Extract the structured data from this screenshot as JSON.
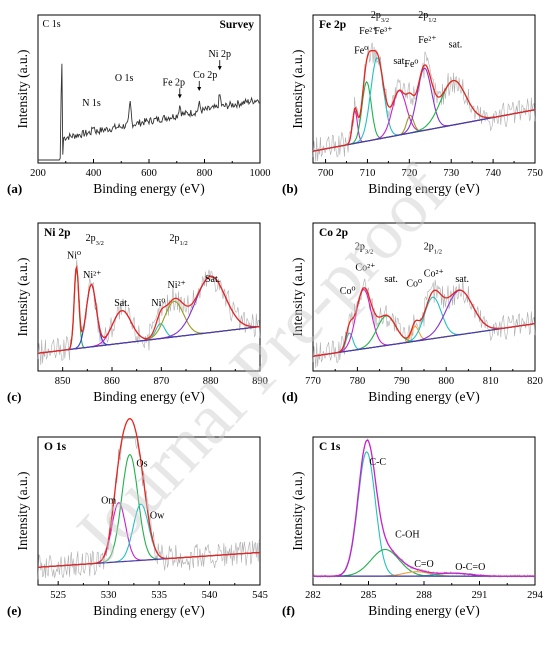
{
  "watermark": "Journal Pre-proof",
  "colors": {
    "envelope": "#e8261f",
    "background": "#4b3aa8",
    "raw": "#999999",
    "green": "#22b14c",
    "magenta": "#cc1fcc",
    "blue": "#2a3bd6",
    "cyan": "#22c1c1",
    "olive": "#9a9a1e",
    "orange": "#f0a030",
    "purple": "#8a30d0",
    "teal": "#1ab0a0",
    "survey_line": "#333333"
  },
  "chart_data": [
    {
      "id": "survey",
      "type": "line",
      "panel_label": "(a)",
      "title": "Survey",
      "xlabel": "Binding energy (eV)",
      "ylabel": "Intensity (a.u.)",
      "xlim": [
        200,
        1000
      ],
      "xticks": [
        "200",
        "400",
        "600",
        "800",
        "1000"
      ],
      "peaks": [
        {
          "label": "C 1s",
          "x": 285,
          "height": 1.0
        },
        {
          "label": "N 1s",
          "x": 400,
          "height": 0.05
        },
        {
          "label": "O 1s",
          "x": 532,
          "height": 0.18
        },
        {
          "label": "Fe 2p",
          "x": 711,
          "height": 0.08
        },
        {
          "label": "Co 2p",
          "x": 781,
          "height": 0.06
        },
        {
          "label": "Ni 2p",
          "x": 855,
          "height": 0.1
        }
      ]
    },
    {
      "id": "fe2p",
      "type": "line",
      "panel_label": "(b)",
      "title": "Fe 2p",
      "xlabel": "Binding energy (eV)",
      "ylabel": "Intensity (a.u.)",
      "xlim": [
        697,
        750
      ],
      "xticks": [
        "700",
        "710",
        "720",
        "730",
        "740",
        "750"
      ],
      "components": [
        {
          "label": "Fe⁰",
          "center": 707.0,
          "fwhm": 1.4,
          "height": 0.22,
          "color": "magenta"
        },
        {
          "label": "Fe²⁺",
          "center": 709.8,
          "fwhm": 2.6,
          "height": 0.4,
          "color": "green"
        },
        {
          "label": "Fe³⁺",
          "center": 712.3,
          "fwhm": 3.6,
          "height": 0.55,
          "color": "cyan"
        },
        {
          "label": "sat.",
          "center": 717.6,
          "fwhm": 4.0,
          "height": 0.3,
          "color": "magenta"
        },
        {
          "label": "Fe⁰",
          "center": 720.2,
          "fwhm": 2.0,
          "height": 0.12,
          "color": "olive"
        },
        {
          "label": "Fe²⁺",
          "center": 723.6,
          "fwhm": 4.0,
          "height": 0.42,
          "color": "purple"
        },
        {
          "label": "sat.",
          "center": 730.5,
          "fwhm": 7.0,
          "height": 0.3,
          "color": "green"
        }
      ],
      "annotations": [
        "2p3/2",
        "2p1/2"
      ],
      "background_range": [
        0.08,
        0.36
      ]
    },
    {
      "id": "ni2p",
      "type": "line",
      "panel_label": "(c)",
      "title": "Ni 2p",
      "xlabel": "Binding energy (eV)",
      "ylabel": "Intensity (a.u.)",
      "xlim": [
        845,
        890
      ],
      "xticks": [
        "850",
        "860",
        "870",
        "880",
        "890"
      ],
      "components": [
        {
          "label": "Ni⁰",
          "center": 852.8,
          "fwhm": 1.1,
          "height": 0.55,
          "color": "green"
        },
        {
          "label": "Ni²⁺",
          "center": 855.8,
          "fwhm": 2.4,
          "height": 0.42,
          "color": "blue"
        },
        {
          "label": "Sat.",
          "center": 862.0,
          "fwhm": 4.5,
          "height": 0.22,
          "color": "magenta"
        },
        {
          "label": "Ni⁰",
          "center": 869.8,
          "fwhm": 2.2,
          "height": 0.1,
          "color": "cyan"
        },
        {
          "label": "Ni²⁺",
          "center": 872.6,
          "fwhm": 4.5,
          "height": 0.24,
          "color": "olive"
        },
        {
          "label": "Sat.",
          "center": 880.0,
          "fwhm": 7.0,
          "height": 0.38,
          "color": "purple"
        }
      ],
      "annotations": [
        "2p3/2",
        "2p1/2"
      ],
      "background_range": [
        0.12,
        0.3
      ]
    },
    {
      "id": "co2p",
      "type": "line",
      "panel_label": "(d)",
      "title": "Co 2p",
      "xlabel": "Binding energy (eV)",
      "ylabel": "Intensity (a.u.)",
      "xlim": [
        770,
        820
      ],
      "xticks": [
        "770",
        "780",
        "790",
        "800",
        "810",
        "820"
      ],
      "components": [
        {
          "label": "Co⁰",
          "center": 778.2,
          "fwhm": 1.8,
          "height": 0.12,
          "color": "cyan"
        },
        {
          "label": "Co²⁺",
          "center": 781.4,
          "fwhm": 4.0,
          "height": 0.4,
          "color": "magenta"
        },
        {
          "label": "sat.",
          "center": 786.5,
          "fwhm": 5.0,
          "height": 0.2,
          "color": "green"
        },
        {
          "label": "Co⁰",
          "center": 793.0,
          "fwhm": 2.0,
          "height": 0.1,
          "color": "orange"
        },
        {
          "label": "Co²⁺",
          "center": 797.0,
          "fwhm": 4.5,
          "height": 0.28,
          "color": "cyan"
        },
        {
          "label": "sat.",
          "center": 803.0,
          "fwhm": 7.0,
          "height": 0.3,
          "color": "purple"
        }
      ],
      "annotations": [
        "2p3/2",
        "2p1/2"
      ],
      "background_range": [
        0.1,
        0.32
      ]
    },
    {
      "id": "o1s",
      "type": "line",
      "panel_label": "(e)",
      "title": "O 1s",
      "xlabel": "Binding energy (eV)",
      "ylabel": "Intensity (a.u.)",
      "xlim": [
        523,
        545
      ],
      "xticks": [
        "525",
        "530",
        "535",
        "540",
        "545"
      ],
      "components": [
        {
          "label": "Om",
          "center": 531.0,
          "fwhm": 1.6,
          "height": 0.4,
          "color": "magenta"
        },
        {
          "label": "Os",
          "center": 532.1,
          "fwhm": 1.9,
          "height": 0.72,
          "color": "green"
        },
        {
          "label": "Ow",
          "center": 533.2,
          "fwhm": 1.8,
          "height": 0.38,
          "color": "cyan"
        }
      ],
      "background_range": [
        0.12,
        0.22
      ]
    },
    {
      "id": "c1s",
      "type": "line",
      "panel_label": "(f)",
      "title": "C 1s",
      "xlabel": "Binding energy (eV)",
      "ylabel": "Intensity (a.u.)",
      "xlim": [
        282,
        294
      ],
      "xticks": [
        "282",
        "285",
        "288",
        "291",
        "294"
      ],
      "components": [
        {
          "label": "C-C",
          "center": 284.9,
          "fwhm": 1.1,
          "height": 0.84,
          "color": "cyan"
        },
        {
          "label": "C-OH",
          "center": 285.9,
          "fwhm": 1.8,
          "height": 0.18,
          "color": "green"
        },
        {
          "label": "C=O",
          "center": 287.6,
          "fwhm": 1.6,
          "height": 0.03,
          "color": "orange"
        },
        {
          "label": "O-C=O",
          "center": 289.6,
          "fwhm": 2.0,
          "height": 0.02,
          "color": "teal"
        }
      ],
      "background_range": [
        0.06,
        0.06
      ]
    }
  ]
}
